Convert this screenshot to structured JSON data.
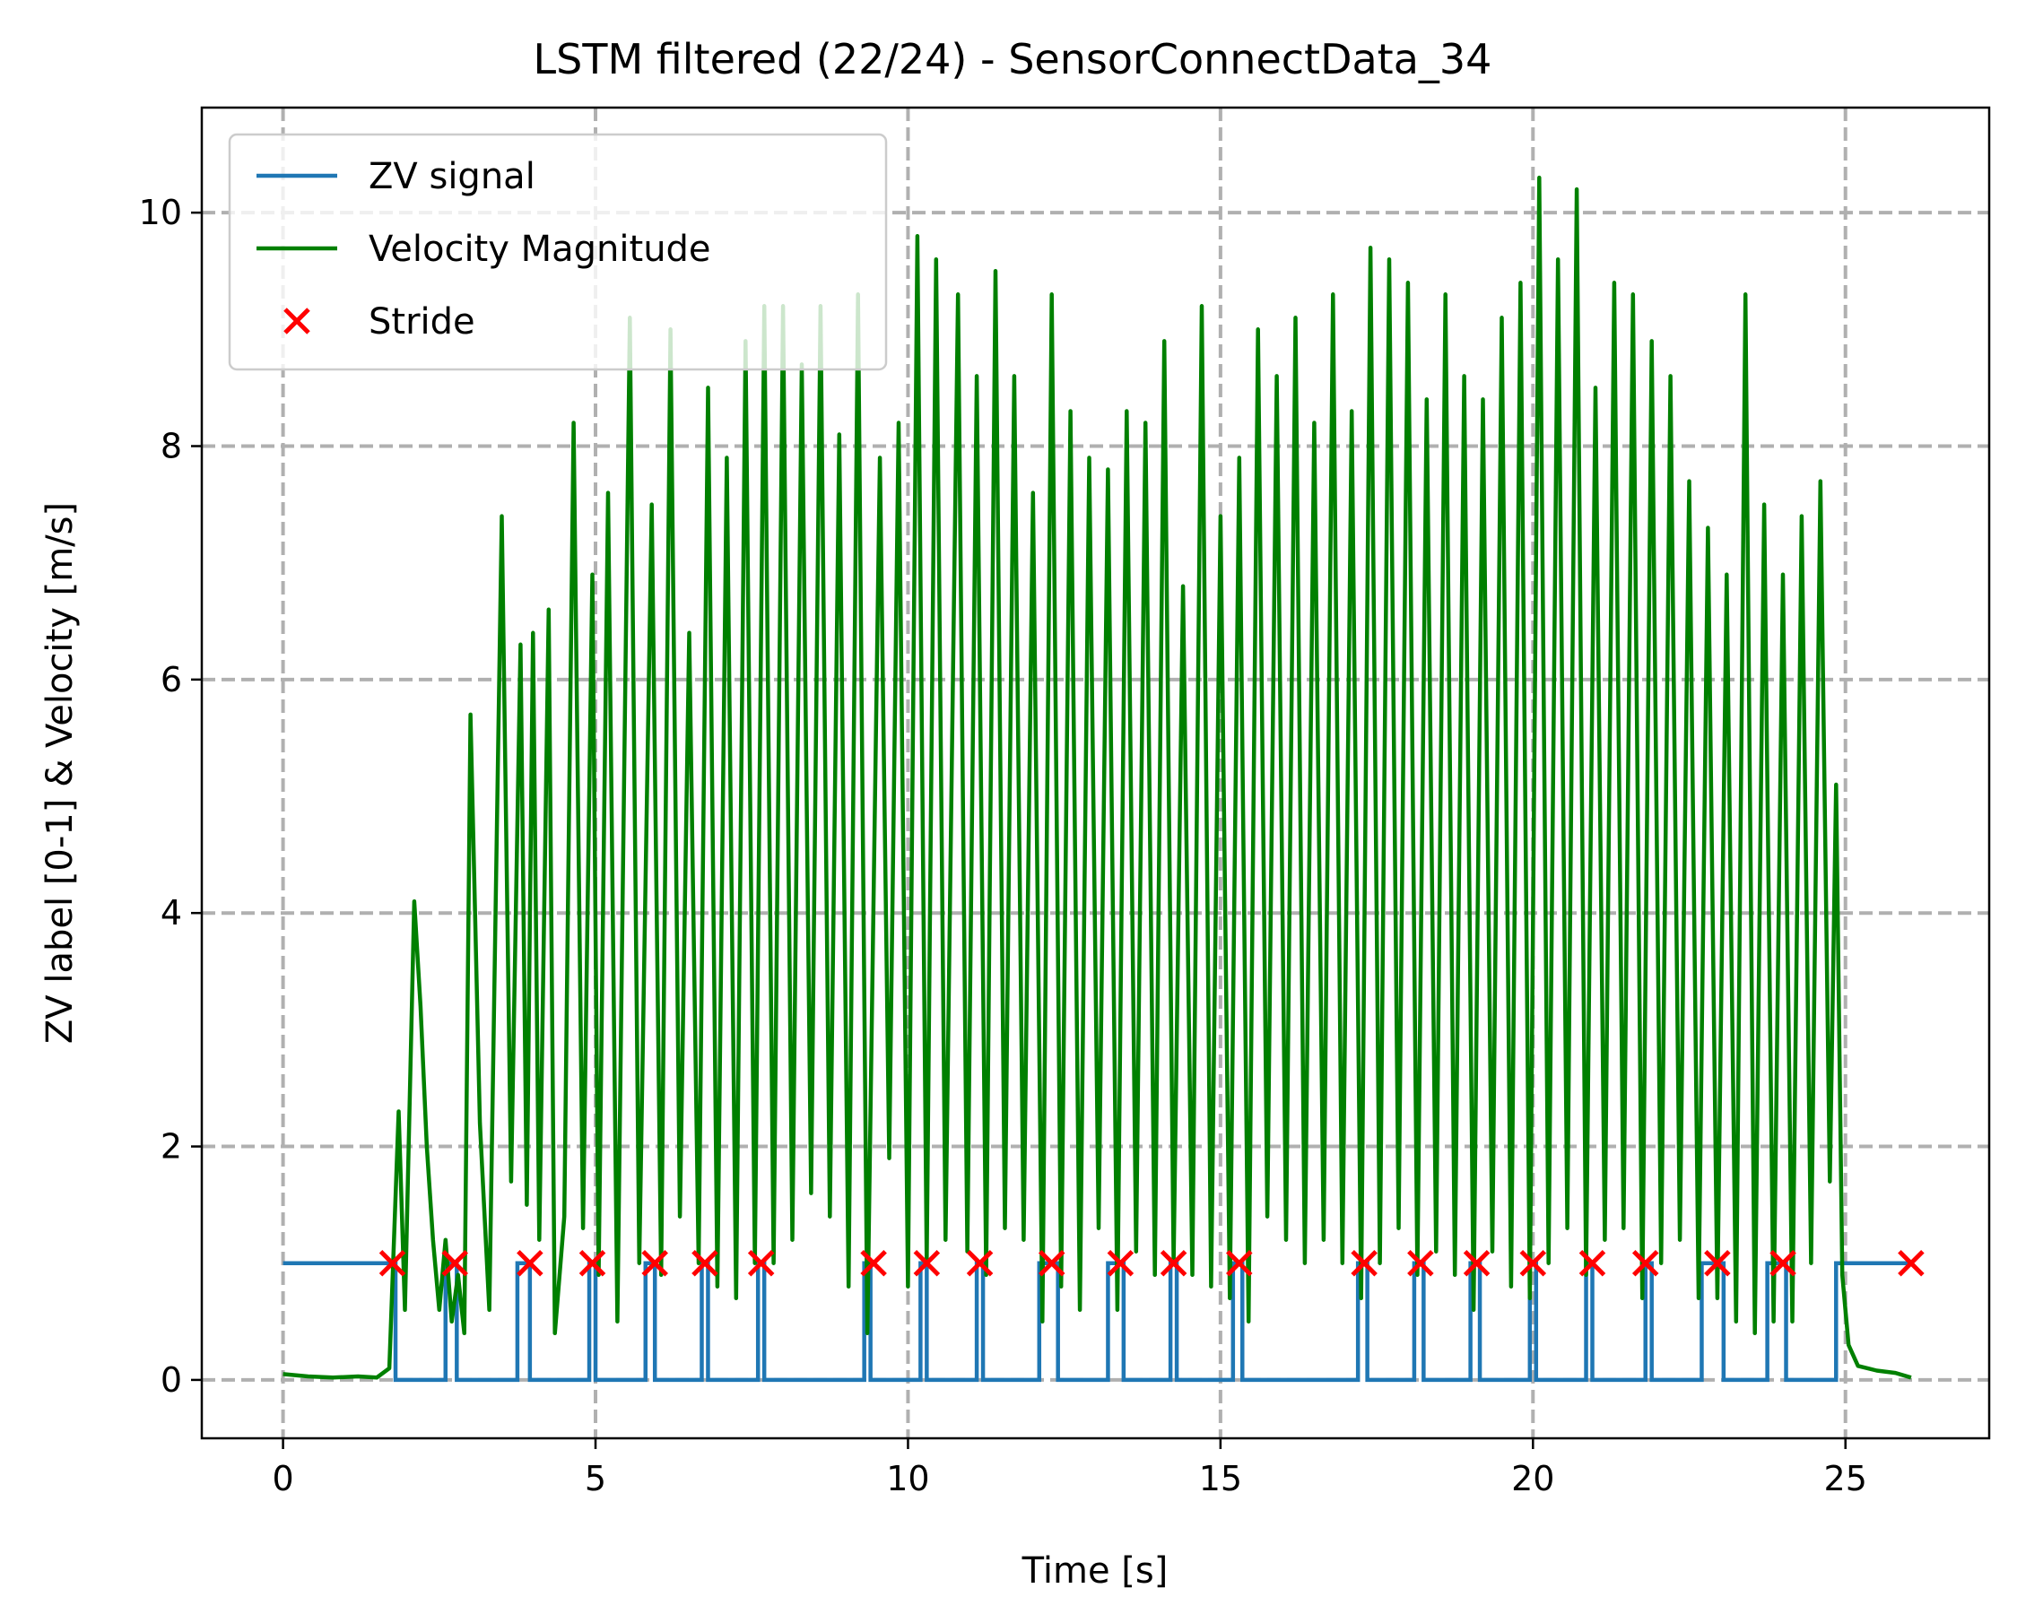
{
  "chart_data": {
    "type": "line",
    "title": "LSTM filtered (22/24) - SensorConnectData_34",
    "xlabel": "Time [s]",
    "ylabel": "ZV label [0-1] & Velocity [m/s]",
    "xlim": [
      -1.3,
      27.3
    ],
    "ylim": [
      -0.5,
      10.9
    ],
    "x_ticks": [
      0,
      5,
      10,
      15,
      20,
      25
    ],
    "y_ticks": [
      0,
      2,
      4,
      6,
      8,
      10
    ],
    "grid": true,
    "legend_position": "top-left",
    "series": [
      {
        "name": "ZV signal",
        "kind": "step",
        "color": "#1f77b4",
        "breakpoints": [
          [
            0.0,
            1
          ],
          [
            1.8,
            0
          ],
          [
            2.6,
            1
          ],
          [
            2.78,
            0
          ],
          [
            3.75,
            1
          ],
          [
            3.95,
            0
          ],
          [
            4.9,
            1
          ],
          [
            5.0,
            0
          ],
          [
            5.8,
            1
          ],
          [
            5.95,
            0
          ],
          [
            6.7,
            1
          ],
          [
            6.8,
            0
          ],
          [
            7.6,
            1
          ],
          [
            7.7,
            0
          ],
          [
            9.3,
            1
          ],
          [
            9.4,
            0
          ],
          [
            10.2,
            1
          ],
          [
            10.3,
            0
          ],
          [
            11.1,
            1
          ],
          [
            11.2,
            0
          ],
          [
            12.1,
            1
          ],
          [
            12.4,
            0
          ],
          [
            13.2,
            1
          ],
          [
            13.45,
            0
          ],
          [
            14.2,
            1
          ],
          [
            14.3,
            0
          ],
          [
            15.2,
            1
          ],
          [
            15.35,
            0
          ],
          [
            17.2,
            1
          ],
          [
            17.35,
            0
          ],
          [
            18.1,
            1
          ],
          [
            18.25,
            0
          ],
          [
            19.0,
            1
          ],
          [
            19.15,
            0
          ],
          [
            19.95,
            1
          ],
          [
            20.05,
            0
          ],
          [
            20.85,
            1
          ],
          [
            20.95,
            0
          ],
          [
            21.8,
            1
          ],
          [
            21.9,
            0
          ],
          [
            22.7,
            1
          ],
          [
            23.05,
            0
          ],
          [
            23.75,
            1
          ],
          [
            24.05,
            0
          ],
          [
            24.85,
            1
          ],
          [
            26.05,
            1
          ]
        ]
      },
      {
        "name": "Velocity Magnitude",
        "kind": "line",
        "color": "#008000",
        "points": [
          [
            0.0,
            0.05
          ],
          [
            0.4,
            0.03
          ],
          [
            0.8,
            0.02
          ],
          [
            1.2,
            0.03
          ],
          [
            1.5,
            0.02
          ],
          [
            1.7,
            0.1
          ],
          [
            1.85,
            2.3
          ],
          [
            1.95,
            0.6
          ],
          [
            2.1,
            4.1
          ],
          [
            2.2,
            3.2
          ],
          [
            2.3,
            2.0
          ],
          [
            2.4,
            1.2
          ],
          [
            2.5,
            0.6
          ],
          [
            2.6,
            1.2
          ],
          [
            2.7,
            0.5
          ],
          [
            2.8,
            0.9
          ],
          [
            2.9,
            0.4
          ],
          [
            3.0,
            5.7
          ],
          [
            3.15,
            2.2
          ],
          [
            3.3,
            0.6
          ],
          [
            3.5,
            7.4
          ],
          [
            3.65,
            1.7
          ],
          [
            3.8,
            6.3
          ],
          [
            3.9,
            1.5
          ],
          [
            4.0,
            6.4
          ],
          [
            4.1,
            1.2
          ],
          [
            4.25,
            6.6
          ],
          [
            4.35,
            0.4
          ],
          [
            4.5,
            1.4
          ],
          [
            4.65,
            8.2
          ],
          [
            4.8,
            1.3
          ],
          [
            4.95,
            6.9
          ],
          [
            5.05,
            0.9
          ],
          [
            5.2,
            7.6
          ],
          [
            5.35,
            0.5
          ],
          [
            5.55,
            9.1
          ],
          [
            5.7,
            1.0
          ],
          [
            5.9,
            7.5
          ],
          [
            6.05,
            0.9
          ],
          [
            6.2,
            9.0
          ],
          [
            6.35,
            1.4
          ],
          [
            6.5,
            6.4
          ],
          [
            6.65,
            1.0
          ],
          [
            6.8,
            8.5
          ],
          [
            6.95,
            0.8
          ],
          [
            7.1,
            7.9
          ],
          [
            7.25,
            0.7
          ],
          [
            7.4,
            8.9
          ],
          [
            7.55,
            1.0
          ],
          [
            7.7,
            9.2
          ],
          [
            7.85,
            1.0
          ],
          [
            8.0,
            9.2
          ],
          [
            8.15,
            1.2
          ],
          [
            8.3,
            8.7
          ],
          [
            8.45,
            1.6
          ],
          [
            8.6,
            9.2
          ],
          [
            8.75,
            1.4
          ],
          [
            8.9,
            8.1
          ],
          [
            9.05,
            0.8
          ],
          [
            9.2,
            9.3
          ],
          [
            9.35,
            0.4
          ],
          [
            9.55,
            7.9
          ],
          [
            9.7,
            1.9
          ],
          [
            9.85,
            8.2
          ],
          [
            10.0,
            0.8
          ],
          [
            10.15,
            9.8
          ],
          [
            10.3,
            1.0
          ],
          [
            10.45,
            9.6
          ],
          [
            10.6,
            1.2
          ],
          [
            10.8,
            9.3
          ],
          [
            10.95,
            1.1
          ],
          [
            11.1,
            8.6
          ],
          [
            11.25,
            0.9
          ],
          [
            11.4,
            9.5
          ],
          [
            11.55,
            1.3
          ],
          [
            11.7,
            8.6
          ],
          [
            11.85,
            1.2
          ],
          [
            12.0,
            7.6
          ],
          [
            12.15,
            0.5
          ],
          [
            12.3,
            9.3
          ],
          [
            12.45,
            0.8
          ],
          [
            12.6,
            8.3
          ],
          [
            12.75,
            0.6
          ],
          [
            12.9,
            7.9
          ],
          [
            13.05,
            1.3
          ],
          [
            13.2,
            7.8
          ],
          [
            13.35,
            0.6
          ],
          [
            13.5,
            8.3
          ],
          [
            13.65,
            1.1
          ],
          [
            13.8,
            8.2
          ],
          [
            13.95,
            0.9
          ],
          [
            14.1,
            8.9
          ],
          [
            14.25,
            1.0
          ],
          [
            14.4,
            6.8
          ],
          [
            14.55,
            0.9
          ],
          [
            14.7,
            9.2
          ],
          [
            14.85,
            0.8
          ],
          [
            15.0,
            7.4
          ],
          [
            15.15,
            0.7
          ],
          [
            15.3,
            7.9
          ],
          [
            15.45,
            0.5
          ],
          [
            15.6,
            9.0
          ],
          [
            15.75,
            1.4
          ],
          [
            15.9,
            8.6
          ],
          [
            16.05,
            1.2
          ],
          [
            16.2,
            9.1
          ],
          [
            16.35,
            1.0
          ],
          [
            16.5,
            8.2
          ],
          [
            16.65,
            1.2
          ],
          [
            16.8,
            9.3
          ],
          [
            16.95,
            1.0
          ],
          [
            17.1,
            8.3
          ],
          [
            17.25,
            0.7
          ],
          [
            17.4,
            9.7
          ],
          [
            17.55,
            1.0
          ],
          [
            17.7,
            9.6
          ],
          [
            17.85,
            1.3
          ],
          [
            18.0,
            9.4
          ],
          [
            18.15,
            0.9
          ],
          [
            18.3,
            8.4
          ],
          [
            18.45,
            1.1
          ],
          [
            18.6,
            9.3
          ],
          [
            18.75,
            0.9
          ],
          [
            18.9,
            8.6
          ],
          [
            19.05,
            0.6
          ],
          [
            19.2,
            8.4
          ],
          [
            19.35,
            1.1
          ],
          [
            19.5,
            9.1
          ],
          [
            19.65,
            0.8
          ],
          [
            19.8,
            9.4
          ],
          [
            19.95,
            0.7
          ],
          [
            20.1,
            10.3
          ],
          [
            20.25,
            1.0
          ],
          [
            20.4,
            9.6
          ],
          [
            20.55,
            1.3
          ],
          [
            20.7,
            10.2
          ],
          [
            20.85,
            0.9
          ],
          [
            21.0,
            8.5
          ],
          [
            21.15,
            1.2
          ],
          [
            21.3,
            9.4
          ],
          [
            21.45,
            1.3
          ],
          [
            21.6,
            9.3
          ],
          [
            21.75,
            0.7
          ],
          [
            21.9,
            8.9
          ],
          [
            22.05,
            1.0
          ],
          [
            22.2,
            8.6
          ],
          [
            22.35,
            1.2
          ],
          [
            22.5,
            7.7
          ],
          [
            22.65,
            0.7
          ],
          [
            22.8,
            7.3
          ],
          [
            22.95,
            0.7
          ],
          [
            23.1,
            6.9
          ],
          [
            23.25,
            0.5
          ],
          [
            23.4,
            9.3
          ],
          [
            23.55,
            0.4
          ],
          [
            23.7,
            7.5
          ],
          [
            23.85,
            0.5
          ],
          [
            24.0,
            6.9
          ],
          [
            24.15,
            0.5
          ],
          [
            24.3,
            7.4
          ],
          [
            24.45,
            1.0
          ],
          [
            24.6,
            7.7
          ],
          [
            24.75,
            1.7
          ],
          [
            24.85,
            5.1
          ],
          [
            24.95,
            0.9
          ],
          [
            25.05,
            0.3
          ],
          [
            25.2,
            0.12
          ],
          [
            25.5,
            0.08
          ],
          [
            25.8,
            0.06
          ],
          [
            26.05,
            0.02
          ]
        ]
      },
      {
        "name": "Stride",
        "kind": "scatter",
        "marker": "x",
        "color": "#ff0000",
        "points": [
          [
            1.75,
            1
          ],
          [
            2.75,
            1
          ],
          [
            3.95,
            1
          ],
          [
            4.95,
            1
          ],
          [
            5.95,
            1
          ],
          [
            6.75,
            1
          ],
          [
            7.65,
            1
          ],
          [
            9.45,
            1
          ],
          [
            10.3,
            1
          ],
          [
            11.15,
            1
          ],
          [
            12.3,
            1
          ],
          [
            13.4,
            1
          ],
          [
            14.25,
            1
          ],
          [
            15.3,
            1
          ],
          [
            17.3,
            1
          ],
          [
            18.2,
            1
          ],
          [
            19.1,
            1
          ],
          [
            20.0,
            1
          ],
          [
            20.95,
            1
          ],
          [
            21.8,
            1
          ],
          [
            22.95,
            1
          ],
          [
            24.0,
            1
          ],
          [
            26.05,
            1
          ]
        ]
      }
    ]
  }
}
